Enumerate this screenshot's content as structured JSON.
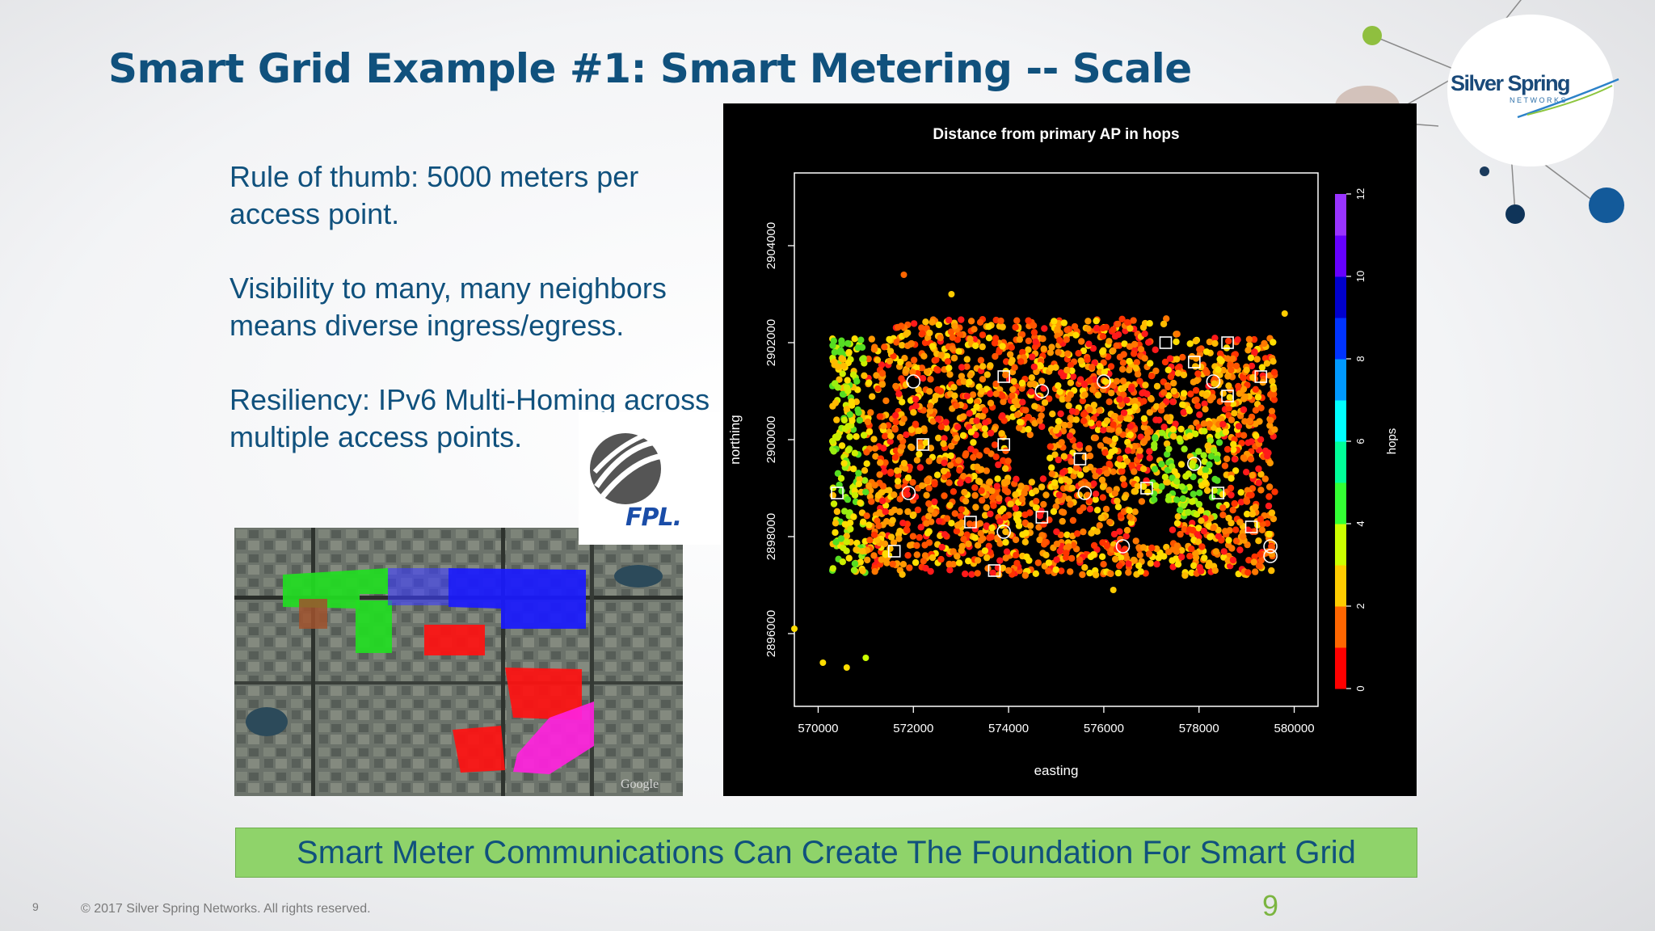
{
  "slide": {
    "title": "Smart Grid Example #1: Smart Metering -- Scale",
    "bullets": [
      "Rule of thumb: 5000 meters per access point.",
      "Visibility to many, many neighbors means diverse ingress/egress.",
      "Resiliency: IPv6 Multi-Homing across multiple access points."
    ],
    "banner": "Smart Meter Communications Can Create The Foundation For Smart Grid",
    "footer_page_small": "9",
    "copyright": "© 2017 Silver Spring Networks.  All rights reserved.",
    "slide_number": "9"
  },
  "logos": {
    "silver_spring": "Silver Spring",
    "silver_spring_sub": "NETWORKS",
    "fpl": "FPL."
  },
  "colors": {
    "title": "#10517d",
    "banner_bg": "#8fd36a",
    "slide_number": "#7bb540"
  },
  "satellite_map": {
    "watermark": "Google",
    "region_colors": [
      "#00e000",
      "#0000ff",
      "#ff0000",
      "#ff00ff",
      "#8b4513"
    ]
  },
  "chart_data": {
    "type": "scatter",
    "title": "Distance from primary AP in hops",
    "xlabel": "easting",
    "ylabel": "northing",
    "xlim": [
      569500,
      580500
    ],
    "ylim": [
      2894500,
      2905500
    ],
    "x_ticks": [
      570000,
      572000,
      574000,
      576000,
      578000,
      580000
    ],
    "y_ticks": [
      2896000,
      2898000,
      2900000,
      2902000,
      2904000
    ],
    "colorbar": {
      "label": "hops",
      "range": [
        0,
        12
      ],
      "ticks": [
        0,
        2,
        4,
        6,
        8,
        10,
        12
      ],
      "colors": [
        "#ff0000",
        "#ff6600",
        "#ffcc00",
        "#ccff00",
        "#33ff33",
        "#00ff99",
        "#00ffff",
        "#0099ff",
        "#0033ff",
        "#0000cc",
        "#6600ff",
        "#9933ff"
      ]
    },
    "access_points_circle": [
      [
        572000,
        2901200
      ],
      [
        576000,
        2901200
      ],
      [
        578300,
        2901200
      ],
      [
        574700,
        2901000
      ],
      [
        571900,
        2898900
      ],
      [
        575600,
        2898900
      ],
      [
        577900,
        2899500
      ],
      [
        573900,
        2898100
      ],
      [
        576400,
        2897800
      ],
      [
        579500,
        2897800
      ],
      [
        579500,
        2897600
      ]
    ],
    "access_points_square": [
      [
        573900,
        2901300
      ],
      [
        577300,
        2902000
      ],
      [
        578600,
        2902000
      ],
      [
        577900,
        2901600
      ],
      [
        578600,
        2900900
      ],
      [
        579300,
        2901300
      ],
      [
        572200,
        2899900
      ],
      [
        573900,
        2899900
      ],
      [
        575500,
        2899600
      ],
      [
        576900,
        2899000
      ],
      [
        578400,
        2898900
      ],
      [
        570400,
        2898900
      ],
      [
        573200,
        2898300
      ],
      [
        574700,
        2898400
      ],
      [
        579100,
        2898200
      ],
      [
        571600,
        2897700
      ],
      [
        573700,
        2897300
      ]
    ]
  }
}
